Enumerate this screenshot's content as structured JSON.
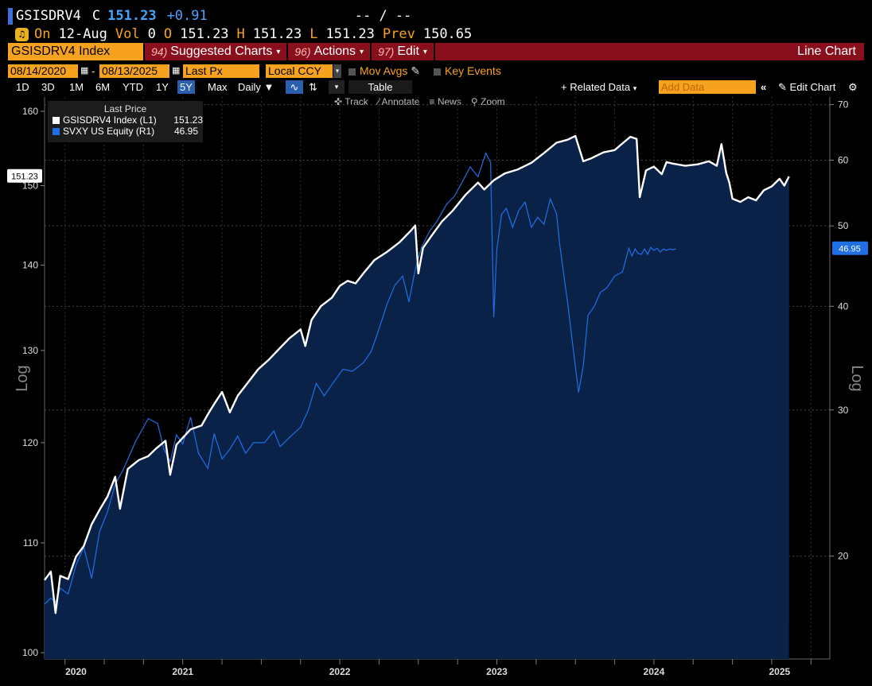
{
  "quote": {
    "ticker": "GSISDRV4",
    "c_label": "C",
    "last": "151.23",
    "change": "+0.91",
    "bidask": "-- / --",
    "on_label": "On",
    "date": "12-Aug",
    "vol_label": "Vol",
    "vol": "0",
    "o_label": "O",
    "open": "151.23",
    "h_label": "H",
    "high": "151.23",
    "l_label": "L",
    "low": "151.23",
    "prev_label": "Prev",
    "prev": "150.65"
  },
  "menubar": {
    "security": "GSISDRV4 Index",
    "suggested_num": "94)",
    "suggested": "Suggested Charts",
    "actions_num": "96)",
    "actions": "Actions",
    "edit_num": "97)",
    "edit": "Edit",
    "chart_type": "Line Chart"
  },
  "controls": {
    "start_date": "08/14/2020",
    "dash": "-",
    "end_date": "08/13/2025",
    "field": "Last Px",
    "currency": "Local CCY",
    "mov_avgs": "Mov Avgs",
    "key_events": "Key Events"
  },
  "range": {
    "buttons": [
      "1D",
      "3D",
      "1M",
      "6M",
      "YTD",
      "1Y",
      "5Y",
      "Max"
    ],
    "selected": "5Y",
    "frequency": "Daily",
    "table": "Table",
    "related": "+ Related Data",
    "add_placeholder": "Add Data",
    "edit_chart": "Edit Chart"
  },
  "tools": {
    "track": "Track",
    "annotate": "Annotate",
    "news": "News",
    "zoom": "Zoom"
  },
  "legend": {
    "header": "Last Price",
    "items": [
      {
        "name": "GSISDRV4 Index  (L1)",
        "value": "151.23",
        "color": "#ffffff"
      },
      {
        "name": "SVXY US Equity  (R1)",
        "value": "46.95",
        "color": "#1f6fe6"
      }
    ]
  },
  "colors": {
    "background": "#000000",
    "area": "#0b2248",
    "index_line": "#ffffff",
    "svxy_line": "#1f6fe6",
    "accent": "#f7a21e",
    "menubar": "#8a0f1c"
  },
  "chart_data": {
    "type": "line",
    "left_axis": {
      "label": "Log",
      "scale": "log",
      "ylim": [
        99.8,
        162
      ],
      "ticks": [
        100,
        110,
        120,
        130,
        140,
        150,
        160
      ]
    },
    "right_axis": {
      "label": "Log",
      "scale": "log",
      "ylim": [
        15.2,
        71.5
      ],
      "ticks": [
        20,
        30,
        40,
        50,
        60,
        70
      ]
    },
    "xlim": [
      2020.62,
      2025.62
    ],
    "x_labels": [
      {
        "label": "2020",
        "x": 2020.82
      },
      {
        "label": "2021",
        "x": 2021.5
      },
      {
        "label": "2022",
        "x": 2022.5
      },
      {
        "label": "2023",
        "x": 2023.5
      },
      {
        "label": "2024",
        "x": 2024.5
      },
      {
        "label": "2025",
        "x": 2025.3
      }
    ],
    "last_labels": {
      "left": "151.23",
      "right": "46.95"
    },
    "series": [
      {
        "name": "GSISDRV4 Index  (L1)",
        "axis": "left",
        "points": [
          [
            2020.62,
            106.5
          ],
          [
            2020.66,
            107.3
          ],
          [
            2020.69,
            103.5
          ],
          [
            2020.72,
            106.9
          ],
          [
            2020.77,
            106.6
          ],
          [
            2020.82,
            108.7
          ],
          [
            2020.87,
            109.7
          ],
          [
            2020.92,
            111.8
          ],
          [
            2020.97,
            113.2
          ],
          [
            2021.02,
            114.5
          ],
          [
            2021.07,
            116.5
          ],
          [
            2021.1,
            113.3
          ],
          [
            2021.15,
            117.3
          ],
          [
            2021.22,
            118.2
          ],
          [
            2021.28,
            118.6
          ],
          [
            2021.33,
            119.4
          ],
          [
            2021.39,
            120.2
          ],
          [
            2021.42,
            116.7
          ],
          [
            2021.46,
            119.8
          ],
          [
            2021.55,
            121.4
          ],
          [
            2021.62,
            121.8
          ],
          [
            2021.66,
            123.0
          ],
          [
            2021.7,
            124.1
          ],
          [
            2021.75,
            125.4
          ],
          [
            2021.8,
            123.2
          ],
          [
            2021.85,
            125.0
          ],
          [
            2021.9,
            126.1
          ],
          [
            2021.98,
            127.9
          ],
          [
            2022.05,
            129.0
          ],
          [
            2022.12,
            130.3
          ],
          [
            2022.18,
            131.4
          ],
          [
            2022.25,
            132.4
          ],
          [
            2022.28,
            130.5
          ],
          [
            2022.32,
            133.5
          ],
          [
            2022.38,
            135.1
          ],
          [
            2022.45,
            136.1
          ],
          [
            2022.5,
            137.5
          ],
          [
            2022.55,
            138.1
          ],
          [
            2022.6,
            137.8
          ],
          [
            2022.65,
            139.0
          ],
          [
            2022.72,
            140.6
          ],
          [
            2022.8,
            141.6
          ],
          [
            2022.88,
            142.8
          ],
          [
            2022.95,
            144.2
          ],
          [
            2022.98,
            144.9
          ],
          [
            2023.0,
            139.0
          ],
          [
            2023.03,
            142.1
          ],
          [
            2023.08,
            143.5
          ],
          [
            2023.15,
            145.4
          ],
          [
            2023.22,
            146.8
          ],
          [
            2023.3,
            148.8
          ],
          [
            2023.38,
            150.4
          ],
          [
            2023.42,
            149.5
          ],
          [
            2023.48,
            150.7
          ],
          [
            2023.55,
            151.6
          ],
          [
            2023.63,
            152.1
          ],
          [
            2023.72,
            153.0
          ],
          [
            2023.8,
            154.3
          ],
          [
            2023.88,
            155.7
          ],
          [
            2023.95,
            156.1
          ],
          [
            2024.0,
            156.6
          ],
          [
            2024.05,
            153.2
          ],
          [
            2024.1,
            153.6
          ],
          [
            2024.18,
            154.4
          ],
          [
            2024.25,
            154.7
          ],
          [
            2024.3,
            155.6
          ],
          [
            2024.35,
            156.5
          ],
          [
            2024.39,
            156.2
          ],
          [
            2024.41,
            148.5
          ],
          [
            2024.45,
            152.0
          ],
          [
            2024.5,
            152.5
          ],
          [
            2024.55,
            151.5
          ],
          [
            2024.58,
            153.1
          ],
          [
            2024.62,
            152.9
          ],
          [
            2024.7,
            152.6
          ],
          [
            2024.78,
            152.8
          ],
          [
            2024.85,
            153.2
          ],
          [
            2024.9,
            152.6
          ],
          [
            2024.93,
            155.5
          ],
          [
            2024.96,
            151.7
          ],
          [
            2024.98,
            150.4
          ],
          [
            2025.0,
            148.3
          ],
          [
            2025.05,
            147.9
          ],
          [
            2025.1,
            148.5
          ],
          [
            2025.15,
            148.1
          ],
          [
            2025.2,
            149.4
          ],
          [
            2025.25,
            149.9
          ],
          [
            2025.3,
            150.9
          ],
          [
            2025.33,
            150.0
          ],
          [
            2025.36,
            151.2
          ]
        ]
      },
      {
        "name": "SVXY US Equity  (R1)",
        "axis": "right",
        "points": [
          [
            2020.62,
            17.5
          ],
          [
            2020.66,
            17.8
          ],
          [
            2020.69,
            17.6
          ],
          [
            2020.72,
            18.3
          ],
          [
            2020.77,
            18.0
          ],
          [
            2020.82,
            19.5
          ],
          [
            2020.87,
            20.5
          ],
          [
            2020.92,
            18.8
          ],
          [
            2020.97,
            21.4
          ],
          [
            2021.02,
            22.6
          ],
          [
            2021.07,
            24.4
          ],
          [
            2021.12,
            25.4
          ],
          [
            2021.2,
            27.5
          ],
          [
            2021.28,
            29.3
          ],
          [
            2021.34,
            28.9
          ],
          [
            2021.38,
            26.9
          ],
          [
            2021.42,
            26.0
          ],
          [
            2021.46,
            28.0
          ],
          [
            2021.5,
            27.3
          ],
          [
            2021.55,
            29.4
          ],
          [
            2021.6,
            26.6
          ],
          [
            2021.66,
            25.5
          ],
          [
            2021.7,
            28.1
          ],
          [
            2021.75,
            26.2
          ],
          [
            2021.8,
            26.9
          ],
          [
            2021.85,
            27.9
          ],
          [
            2021.9,
            26.6
          ],
          [
            2021.95,
            27.4
          ],
          [
            2022.02,
            27.4
          ],
          [
            2022.08,
            28.3
          ],
          [
            2022.12,
            27.1
          ],
          [
            2022.18,
            27.8
          ],
          [
            2022.25,
            28.6
          ],
          [
            2022.3,
            30.0
          ],
          [
            2022.35,
            32.3
          ],
          [
            2022.4,
            31.2
          ],
          [
            2022.45,
            32.2
          ],
          [
            2022.52,
            33.6
          ],
          [
            2022.58,
            33.4
          ],
          [
            2022.65,
            34.2
          ],
          [
            2022.7,
            35.3
          ],
          [
            2022.75,
            37.6
          ],
          [
            2022.8,
            40.2
          ],
          [
            2022.85,
            42.4
          ],
          [
            2022.9,
            43.5
          ],
          [
            2022.94,
            40.5
          ],
          [
            2022.98,
            44.3
          ],
          [
            2023.02,
            47.1
          ],
          [
            2023.07,
            49.2
          ],
          [
            2023.12,
            50.7
          ],
          [
            2023.18,
            53.1
          ],
          [
            2023.23,
            54.3
          ],
          [
            2023.28,
            56.5
          ],
          [
            2023.33,
            58.9
          ],
          [
            2023.38,
            57.3
          ],
          [
            2023.43,
            61.2
          ],
          [
            2023.46,
            59.6
          ],
          [
            2023.48,
            38.8
          ],
          [
            2023.5,
            46.9
          ],
          [
            2023.53,
            51.6
          ],
          [
            2023.56,
            52.5
          ],
          [
            2023.6,
            49.8
          ],
          [
            2023.64,
            52.2
          ],
          [
            2023.68,
            53.4
          ],
          [
            2023.72,
            49.8
          ],
          [
            2023.76,
            51.2
          ],
          [
            2023.8,
            50.2
          ],
          [
            2023.84,
            53.9
          ],
          [
            2023.88,
            51.7
          ],
          [
            2023.9,
            47.5
          ],
          [
            2023.92,
            44.5
          ],
          [
            2023.95,
            40.5
          ],
          [
            2023.98,
            36.3
          ],
          [
            2024.02,
            31.5
          ],
          [
            2024.05,
            33.9
          ],
          [
            2024.08,
            39.0
          ],
          [
            2024.12,
            40.0
          ],
          [
            2024.16,
            41.6
          ],
          [
            2024.2,
            42.1
          ],
          [
            2024.25,
            43.5
          ],
          [
            2024.3,
            44.0
          ],
          [
            2024.34,
            47.0
          ],
          [
            2024.36,
            46.0
          ],
          [
            2024.38,
            46.9
          ],
          [
            2024.4,
            46.3
          ],
          [
            2024.42,
            46.2
          ],
          [
            2024.44,
            46.9
          ],
          [
            2024.46,
            46.2
          ],
          [
            2024.48,
            47.1
          ],
          [
            2024.5,
            46.7
          ],
          [
            2024.52,
            47.0
          ],
          [
            2024.54,
            46.5
          ],
          [
            2024.56,
            46.9
          ],
          [
            2024.58,
            46.7
          ],
          [
            2024.6,
            46.9
          ],
          [
            2024.62,
            46.8
          ],
          [
            2024.64,
            46.9
          ]
        ]
      }
    ]
  }
}
